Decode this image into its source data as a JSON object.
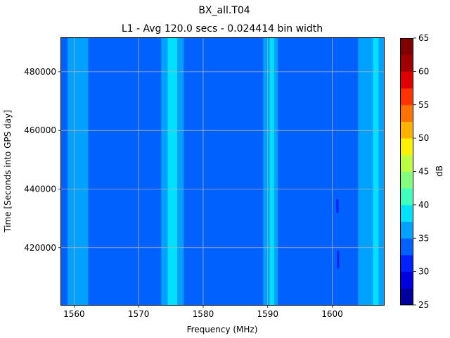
{
  "chart_data": {
    "type": "heatmap",
    "title": "BX_all.T04",
    "subtitle": "L1 - Avg 120.0 secs - 0.024414 bin width",
    "xlabel": "Frequency (MHz)",
    "ylabel": "Time [Seconds into GPS day]",
    "xlim": [
      1558,
      1608
    ],
    "ylim": [
      400500,
      491500
    ],
    "xticks": [
      1560,
      1570,
      1580,
      1590,
      1600
    ],
    "yticks": [
      420000,
      440000,
      460000,
      480000
    ],
    "grid": true,
    "colorbar": {
      "label": "dB",
      "min": 25,
      "max": 65,
      "ticks": [
        25,
        30,
        35,
        40,
        45,
        50,
        55,
        60,
        65
      ],
      "levels": [
        25,
        27.5,
        30,
        32.5,
        35,
        37.5,
        40,
        42.5,
        45,
        47.5,
        50,
        52.5,
        55,
        57.5,
        60,
        62.5,
        65
      ],
      "colors": [
        "#00009f",
        "#0000df",
        "#0021ff",
        "#0061ff",
        "#00a1ff",
        "#00e1ff",
        "#41ffbd",
        "#81ff7d",
        "#bdff41",
        "#fdf100",
        "#ffb300",
        "#ff7300",
        "#ff3300",
        "#df0000",
        "#9f0000",
        "#800000"
      ]
    },
    "frequency_profile_db": [
      {
        "from": 1558.0,
        "to": 1559.0,
        "value": 34
      },
      {
        "from": 1559.0,
        "to": 1562.2,
        "value": 36
      },
      {
        "from": 1562.2,
        "to": 1573.5,
        "value": 34
      },
      {
        "from": 1573.5,
        "to": 1574.5,
        "value": 36
      },
      {
        "from": 1574.5,
        "to": 1576.0,
        "value": 38.5
      },
      {
        "from": 1576.0,
        "to": 1577.0,
        "value": 36
      },
      {
        "from": 1577.0,
        "to": 1589.3,
        "value": 34
      },
      {
        "from": 1589.3,
        "to": 1590.3,
        "value": 36
      },
      {
        "from": 1590.3,
        "to": 1591.0,
        "value": 38.5
      },
      {
        "from": 1591.0,
        "to": 1591.6,
        "value": 36
      },
      {
        "from": 1591.6,
        "to": 1604.0,
        "value": 34
      },
      {
        "from": 1604.0,
        "to": 1605.5,
        "value": 35
      },
      {
        "from": 1605.5,
        "to": 1606.3,
        "value": 36
      },
      {
        "from": 1606.3,
        "to": 1607.2,
        "value": 38.5
      },
      {
        "from": 1607.2,
        "to": 1608.0,
        "value": 36
      }
    ],
    "features": [
      {
        "x": 1600.8,
        "y_from": 432000,
        "y_to": 436500,
        "value": 31
      },
      {
        "x": 1600.9,
        "y_from": 413000,
        "y_to": 419000,
        "value": 32
      }
    ]
  }
}
